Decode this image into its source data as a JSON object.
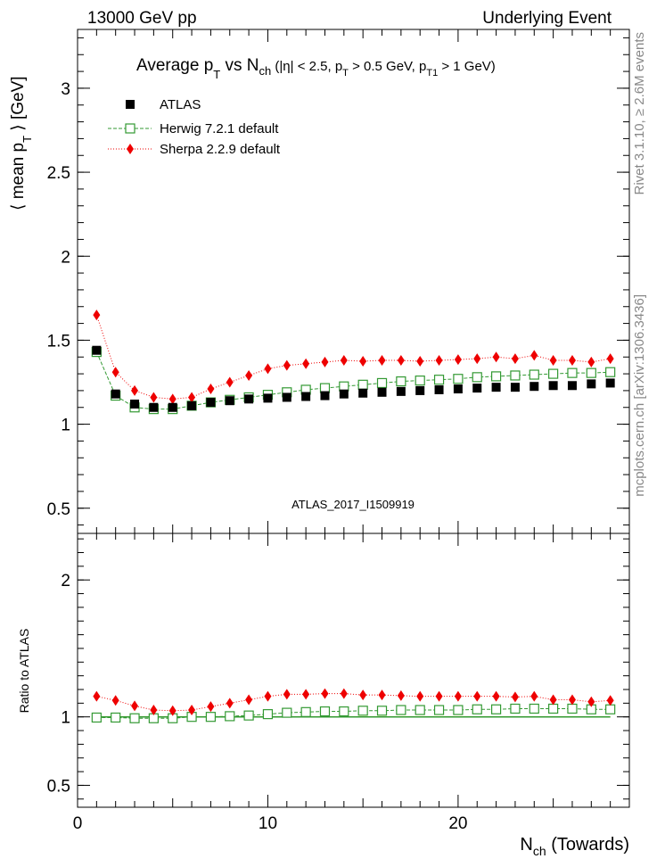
{
  "header": {
    "left": "13000 GeV pp",
    "right": "Underlying Event"
  },
  "side_labels": {
    "top": "Rivet 3.1.10, ≥ 2.6M events",
    "bottom": "mcplots.cern.ch [arXiv:1306.3436]"
  },
  "analysis_label": "ATLAS_2017_I1509919",
  "colors": {
    "atlas": "#000000",
    "herwig": "#339933",
    "sherpa": "#ee0000",
    "band": "#ffff00",
    "ratio_line": "#339933"
  },
  "chart_data": [
    {
      "type": "scatter",
      "title": "Average p_T vs N_ch (|η| < 2.5, p_T > 0.5 GeV, p_T1 > 1 GeV)",
      "ylabel": "⟨ mean p_T ⟩ [GeV]",
      "xlabel": "N_ch (Towards)",
      "xlim": [
        0,
        29
      ],
      "ylim": [
        0.35,
        3.35
      ],
      "yticks": [
        0.5,
        1,
        1.5,
        2,
        2.5,
        3
      ],
      "legend_position": "top-left",
      "x": [
        1,
        2,
        3,
        4,
        5,
        6,
        7,
        8,
        9,
        10,
        11,
        12,
        13,
        14,
        15,
        16,
        17,
        18,
        19,
        20,
        21,
        22,
        23,
        24,
        25,
        26,
        27,
        28
      ],
      "series": [
        {
          "name": "ATLAS",
          "marker": "filled-square",
          "values": [
            1.44,
            1.18,
            1.12,
            1.1,
            1.1,
            1.11,
            1.13,
            1.14,
            1.15,
            1.155,
            1.16,
            1.165,
            1.17,
            1.18,
            1.185,
            1.19,
            1.195,
            1.2,
            1.205,
            1.21,
            1.215,
            1.22,
            1.22,
            1.225,
            1.23,
            1.23,
            1.24,
            1.245
          ]
        },
        {
          "name": "Herwig 7.2.1 default",
          "marker": "open-square",
          "line": "dashed",
          "values": [
            1.43,
            1.17,
            1.1,
            1.09,
            1.09,
            1.11,
            1.13,
            1.145,
            1.16,
            1.175,
            1.19,
            1.205,
            1.215,
            1.225,
            1.235,
            1.245,
            1.255,
            1.26,
            1.265,
            1.27,
            1.28,
            1.285,
            1.29,
            1.295,
            1.3,
            1.305,
            1.305,
            1.31
          ]
        },
        {
          "name": "Sherpa 2.2.9 default",
          "marker": "diamond",
          "line": "dotted",
          "values": [
            1.65,
            1.31,
            1.2,
            1.16,
            1.15,
            1.16,
            1.21,
            1.25,
            1.29,
            1.33,
            1.35,
            1.36,
            1.37,
            1.38,
            1.375,
            1.38,
            1.38,
            1.375,
            1.38,
            1.385,
            1.39,
            1.4,
            1.39,
            1.41,
            1.38,
            1.38,
            1.37,
            1.39
          ]
        }
      ]
    },
    {
      "type": "scatter",
      "ylabel": "Ratio to ATLAS",
      "xlabel": "N_ch (Towards)",
      "xlim": [
        0,
        29
      ],
      "ylim": [
        0.34,
        2.34
      ],
      "yticks": [
        0.5,
        1,
        2
      ],
      "xticks": [
        0,
        10,
        20
      ],
      "x": [
        1,
        2,
        3,
        4,
        5,
        6,
        7,
        8,
        9,
        10,
        11,
        12,
        13,
        14,
        15,
        16,
        17,
        18,
        19,
        20,
        21,
        22,
        23,
        24,
        25,
        26,
        27,
        28
      ],
      "series": [
        {
          "name": "Herwig 7.2.1 default",
          "marker": "open-square",
          "line": "dashed",
          "values": [
            0.995,
            0.995,
            0.99,
            0.99,
            0.99,
            1.0,
            1.0,
            1.005,
            1.01,
            1.02,
            1.03,
            1.035,
            1.04,
            1.04,
            1.045,
            1.045,
            1.05,
            1.05,
            1.05,
            1.05,
            1.055,
            1.055,
            1.06,
            1.06,
            1.06,
            1.06,
            1.055,
            1.055
          ]
        },
        {
          "name": "Sherpa 2.2.9 default",
          "marker": "diamond",
          "line": "dotted",
          "values": [
            1.15,
            1.12,
            1.08,
            1.05,
            1.045,
            1.05,
            1.075,
            1.1,
            1.125,
            1.15,
            1.165,
            1.165,
            1.17,
            1.17,
            1.16,
            1.16,
            1.155,
            1.15,
            1.15,
            1.15,
            1.15,
            1.15,
            1.145,
            1.15,
            1.125,
            1.125,
            1.11,
            1.12
          ]
        }
      ]
    }
  ]
}
